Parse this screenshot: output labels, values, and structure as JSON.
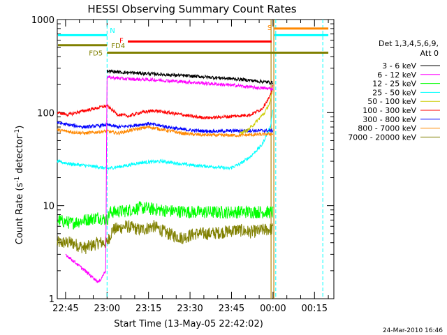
{
  "chart_data": {
    "type": "line",
    "title": "HESSI Observing Summary Count Rates",
    "xlabel": "Start Time (13-May-05 22:42:02)",
    "ylabel_main": "Count Rate (s",
    "ylabel_sup1": "-1",
    "ylabel_mid": " detector",
    "ylabel_sup2": "-1",
    "ylabel_end": ")",
    "x_unit": "minutes after 22:42:02",
    "xlim": [
      0,
      100
    ],
    "ylim": [
      1,
      1000
    ],
    "yscale": "log",
    "x_ticks": [
      {
        "label": "22:45",
        "t": 3
      },
      {
        "label": "23:00",
        "t": 18
      },
      {
        "label": "23:15",
        "t": 33
      },
      {
        "label": "23:30",
        "t": 48
      },
      {
        "label": "23:45",
        "t": 63
      },
      {
        "label": "00:00",
        "t": 78
      },
      {
        "label": "00:15",
        "t": 93
      }
    ],
    "y_ticks": [
      {
        "label": "1",
        "v": 1
      },
      {
        "label": "10",
        "v": 10
      },
      {
        "label": "100",
        "v": 100
      },
      {
        "label": "1000",
        "v": 1000
      }
    ],
    "legend_header": [
      "Det 1,3,4,5,6,9,",
      "Att 0"
    ],
    "legend_placement": "right",
    "series": [
      {
        "name": "3 - 6 keV",
        "color": "#000000",
        "points": [
          [
            18,
            280
          ],
          [
            24,
            270
          ],
          [
            30,
            265
          ],
          [
            40,
            255
          ],
          [
            50,
            245
          ],
          [
            60,
            235
          ],
          [
            68,
            225
          ],
          [
            74,
            215
          ],
          [
            78,
            210
          ]
        ]
      },
      {
        "name": "6 - 12 keV",
        "color": "#ff00ff",
        "points": [
          [
            3,
            3
          ],
          [
            10,
            2
          ],
          [
            15,
            1.5
          ],
          [
            17.5,
            2
          ],
          [
            18,
            240
          ],
          [
            25,
            230
          ],
          [
            35,
            225
          ],
          [
            45,
            215
          ],
          [
            55,
            205
          ],
          [
            65,
            195
          ],
          [
            72,
            185
          ],
          [
            78,
            180
          ]
        ]
      },
      {
        "name": "12 - 25 keV",
        "color": "#00ff00",
        "points": [
          [
            0,
            7
          ],
          [
            5,
            6.5
          ],
          [
            10,
            7
          ],
          [
            15,
            7.5
          ],
          [
            18,
            7
          ],
          [
            19,
            8.5
          ],
          [
            25,
            8.8
          ],
          [
            30,
            9.5
          ],
          [
            40,
            8.8
          ],
          [
            50,
            8.5
          ],
          [
            60,
            8.5
          ],
          [
            70,
            8.6
          ],
          [
            78,
            8.5
          ]
        ]
      },
      {
        "name": "25 - 50 keV",
        "color": "#00ffff",
        "points": [
          [
            0,
            30
          ],
          [
            5,
            28
          ],
          [
            10,
            27
          ],
          [
            15,
            26
          ],
          [
            18,
            25
          ],
          [
            25,
            27
          ],
          [
            30,
            29
          ],
          [
            38,
            30
          ],
          [
            45,
            28
          ],
          [
            50,
            27
          ],
          [
            58,
            26
          ],
          [
            62,
            25
          ],
          [
            66,
            28
          ],
          [
            70,
            34
          ],
          [
            74,
            45
          ],
          [
            77,
            70
          ],
          [
            78,
            110
          ]
        ]
      },
      {
        "name": "50 - 100 keV",
        "color": "#cccc00",
        "points": [
          [
            66,
            60
          ],
          [
            69,
            65
          ],
          [
            72,
            80
          ],
          [
            75,
            100
          ],
          [
            77,
            130
          ],
          [
            78,
            180
          ]
        ]
      },
      {
        "name": "100 - 300 keV",
        "color": "#ff0000",
        "points": [
          [
            0,
            100
          ],
          [
            4,
            95
          ],
          [
            8,
            102
          ],
          [
            12,
            108
          ],
          [
            16,
            115
          ],
          [
            18,
            118
          ],
          [
            22,
            95
          ],
          [
            26,
            92
          ],
          [
            30,
            100
          ],
          [
            35,
            105
          ],
          [
            40,
            100
          ],
          [
            45,
            95
          ],
          [
            50,
            90
          ],
          [
            55,
            88
          ],
          [
            60,
            90
          ],
          [
            65,
            92
          ],
          [
            70,
            95
          ],
          [
            74,
            110
          ],
          [
            77,
            150
          ],
          [
            78,
            200
          ]
        ]
      },
      {
        "name": "300 - 800 keV",
        "color": "#0000ff",
        "points": [
          [
            0,
            78
          ],
          [
            5,
            73
          ],
          [
            10,
            70
          ],
          [
            15,
            72
          ],
          [
            18,
            74
          ],
          [
            22,
            70
          ],
          [
            28,
            73
          ],
          [
            33,
            76
          ],
          [
            40,
            70
          ],
          [
            45,
            66
          ],
          [
            50,
            64
          ],
          [
            58,
            63
          ],
          [
            65,
            64
          ],
          [
            72,
            64
          ],
          [
            78,
            64
          ]
        ]
      },
      {
        "name": "800 - 7000 keV",
        "color": "#ff8800",
        "points": [
          [
            0,
            65
          ],
          [
            5,
            62
          ],
          [
            10,
            60
          ],
          [
            15,
            62
          ],
          [
            18,
            63
          ],
          [
            22,
            60
          ],
          [
            28,
            66
          ],
          [
            33,
            70
          ],
          [
            40,
            64
          ],
          [
            45,
            60
          ],
          [
            50,
            58
          ],
          [
            58,
            57
          ],
          [
            65,
            57
          ],
          [
            72,
            58
          ],
          [
            78,
            59
          ]
        ]
      },
      {
        "name": "7000 - 20000 keV",
        "color": "#808000",
        "points": [
          [
            0,
            4
          ],
          [
            5,
            4
          ],
          [
            10,
            3.5
          ],
          [
            15,
            4
          ],
          [
            18,
            4
          ],
          [
            20,
            5.5
          ],
          [
            25,
            6
          ],
          [
            30,
            5.5
          ],
          [
            35,
            6
          ],
          [
            40,
            5
          ],
          [
            45,
            4.5
          ],
          [
            50,
            5
          ],
          [
            55,
            5
          ],
          [
            60,
            5.2
          ],
          [
            65,
            5.5
          ],
          [
            70,
            5.2
          ],
          [
            75,
            5.5
          ],
          [
            78,
            5.6
          ]
        ]
      }
    ],
    "flag_bars": [
      {
        "label": "N",
        "color": "#00ffff",
        "y": 680,
        "segments": [
          [
            -2,
            18
          ],
          [
            78.5,
            98
          ]
        ]
      },
      {
        "label": "S",
        "color": "#ff8800",
        "y": 800,
        "segments": [
          [
            78.5,
            98
          ]
        ]
      },
      {
        "label": "F",
        "color": "#ff0000",
        "y": 580,
        "segments": [
          [
            25.5,
            77.5
          ]
        ]
      },
      {
        "label": "FD4",
        "color": "#808000",
        "y": 530,
        "segments": [
          [
            -2,
            18
          ]
        ]
      },
      {
        "label": "FD5",
        "color": "#808000",
        "y": 440,
        "segments": [
          [
            18,
            98
          ]
        ]
      }
    ],
    "vlines_cyan": [
      18,
      79,
      96
    ],
    "vlines_olive": [
      77.3,
      78.3
    ],
    "timestamp": "24-Mar-2010 16:46"
  }
}
